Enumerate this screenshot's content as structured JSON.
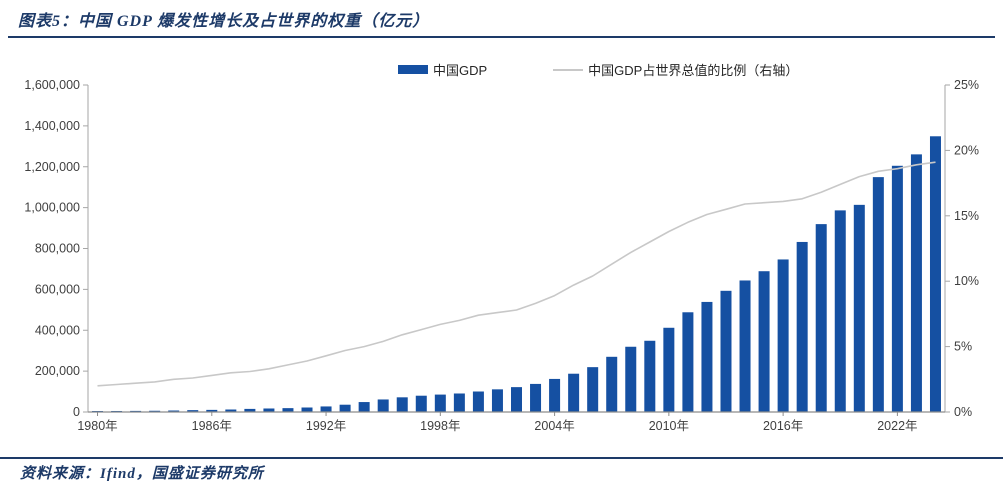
{
  "figure": {
    "title": "图表5：中国 GDP 爆发性增长及占世界的权重（亿元）"
  },
  "legend": {
    "items": [
      {
        "label": "中国GDP",
        "marker": "bar-swatch",
        "color": "#1550A2"
      },
      {
        "label": "中国GDP占世界总值的比例（右轴）",
        "marker": "line-swatch",
        "color": "#C8C8C8"
      }
    ]
  },
  "source": {
    "text": "资料来源：Ifind，国盛证券研究所"
  },
  "colors": {
    "accent_navy": "#1D3A68",
    "bar_blue": "#1550A2",
    "line_gray": "#C8C8C8",
    "axis_gray": "#A6A6A6",
    "x_axis_gray": "#8C8C8C",
    "label_gray": "#3F3F3F"
  },
  "chart_data": {
    "type": "combo",
    "title": "中国 GDP 爆发性增长及占世界的权重（亿元）",
    "x": [
      1980,
      1981,
      1982,
      1983,
      1984,
      1985,
      1986,
      1987,
      1988,
      1989,
      1990,
      1991,
      1992,
      1993,
      1994,
      1995,
      1996,
      1997,
      1998,
      1999,
      2000,
      2001,
      2002,
      2003,
      2004,
      2005,
      2006,
      2007,
      2008,
      2009,
      2010,
      2011,
      2012,
      2013,
      2014,
      2015,
      2016,
      2017,
      2018,
      2019,
      2020,
      2021,
      2022,
      2023,
      2024
    ],
    "x_tick_labels": [
      "1980年",
      "1986年",
      "1992年",
      "1998年",
      "2004年",
      "2010年",
      "2016年",
      "2022年"
    ],
    "x_tick_step": 6,
    "series": [
      {
        "name": "中国GDP",
        "type": "bar",
        "axis": "left",
        "unit": "亿元",
        "color": "#1550A2",
        "values": [
          4588,
          4936,
          5373,
          6021,
          7279,
          9099,
          10376,
          12175,
          15180,
          17179,
          18873,
          22006,
          27195,
          35673,
          48638,
          61340,
          71814,
          79715,
          85196,
          90564,
          100280,
          110863,
          121717,
          137422,
          161840,
          187319,
          219439,
          270092,
          319245,
          348518,
          412119,
          487940,
          538580,
          592963,
          643563,
          688858,
          746395,
          832036,
          919281,
          986515,
          1013567,
          1149237,
          1204724,
          1260582,
          1349084
        ]
      },
      {
        "name": "中国GDP占世界总值的比例（右轴）",
        "type": "line",
        "axis": "right",
        "unit": "%",
        "color": "#C8C8C8",
        "values": [
          2.0,
          2.1,
          2.2,
          2.3,
          2.5,
          2.6,
          2.8,
          3.0,
          3.1,
          3.3,
          3.6,
          3.9,
          4.3,
          4.7,
          5.0,
          5.4,
          5.9,
          6.3,
          6.7,
          7.0,
          7.4,
          7.6,
          7.8,
          8.3,
          8.9,
          9.7,
          10.4,
          11.3,
          12.2,
          13.0,
          13.8,
          14.5,
          15.1,
          15.5,
          15.9,
          16.0,
          16.1,
          16.3,
          16.8,
          17.4,
          18.0,
          18.4,
          18.6,
          18.9,
          19.1
        ]
      }
    ],
    "left_axis": {
      "min": 0,
      "max": 1600000,
      "step": 200000,
      "tick_labels": [
        "0",
        "200,000",
        "400,000",
        "600,000",
        "800,000",
        "1,000,000",
        "1,200,000",
        "1,400,000",
        "1,600,000"
      ]
    },
    "right_axis": {
      "min": 0,
      "max": 25,
      "step": 5,
      "tick_labels": [
        "0%",
        "5%",
        "10%",
        "15%",
        "20%",
        "25%"
      ]
    },
    "grid": false,
    "legend_position": "top"
  }
}
